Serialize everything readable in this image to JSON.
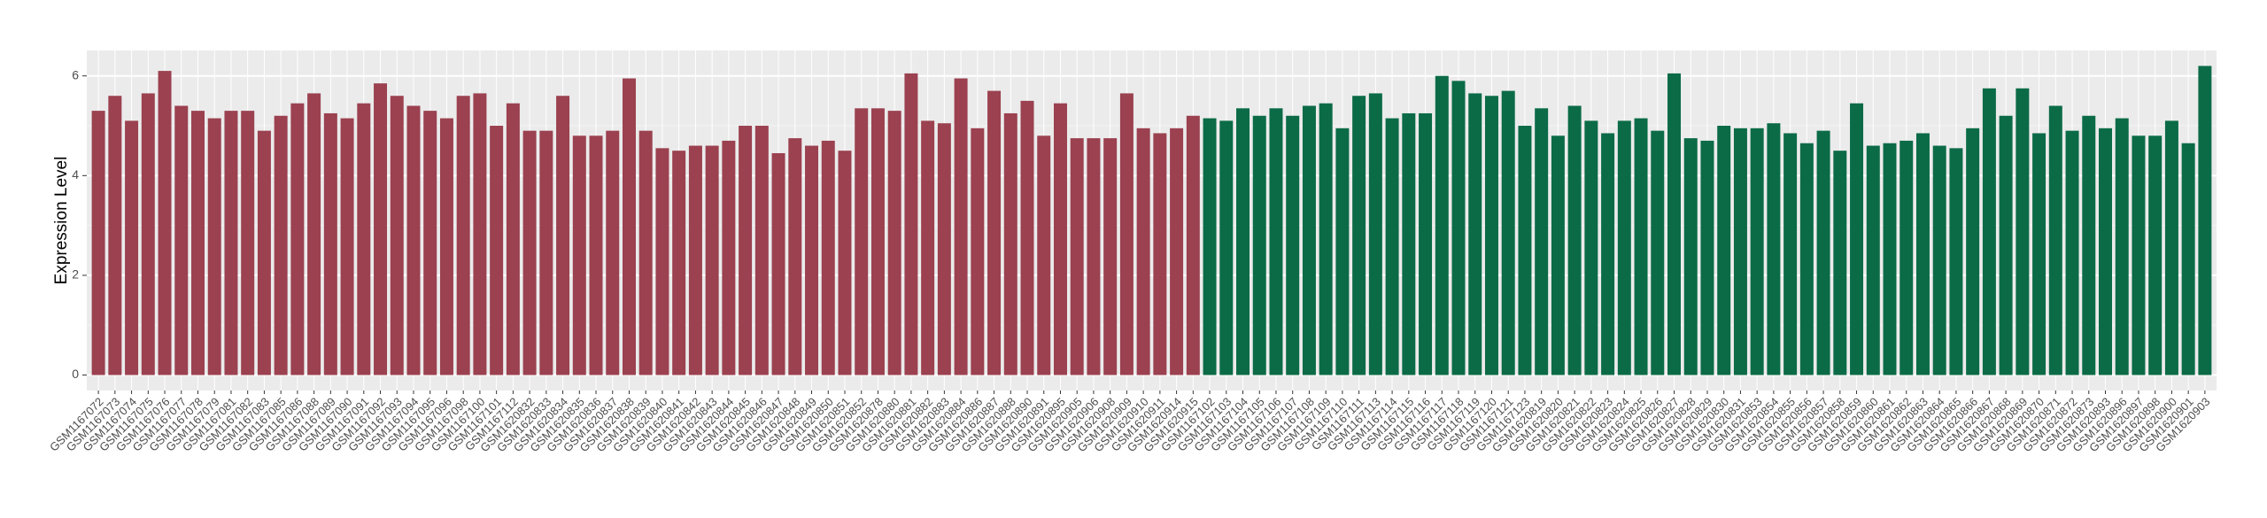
{
  "chart_data": {
    "type": "bar",
    "y_label": "Expression Level",
    "categories": [
      "GSM1167072",
      "GSM1167073",
      "GSM1167074",
      "GSM1167075",
      "GSM1167076",
      "GSM1167077",
      "GSM1167078",
      "GSM1167079",
      "GSM1167081",
      "GSM1167082",
      "GSM1167083",
      "GSM1167085",
      "GSM1167086",
      "GSM1167088",
      "GSM1167089",
      "GSM1167090",
      "GSM1167091",
      "GSM1167092",
      "GSM1167093",
      "GSM1167094",
      "GSM1167095",
      "GSM1167096",
      "GSM1167098",
      "GSM1167100",
      "GSM1167101",
      "GSM1167112",
      "GSM1620832",
      "GSM1620833",
      "GSM1620834",
      "GSM1620835",
      "GSM1620836",
      "GSM1620837",
      "GSM1620838",
      "GSM1620839",
      "GSM1620840",
      "GSM1620841",
      "GSM1620842",
      "GSM1620843",
      "GSM1620844",
      "GSM1620845",
      "GSM1620846",
      "GSM1620847",
      "GSM1620848",
      "GSM1620849",
      "GSM1620850",
      "GSM1620851",
      "GSM1620852",
      "GSM1620878",
      "GSM1620880",
      "GSM1620881",
      "GSM1620882",
      "GSM1620883",
      "GSM1620884",
      "GSM1620886",
      "GSM1620887",
      "GSM1620888",
      "GSM1620890",
      "GSM1620891",
      "GSM1620895",
      "GSM1620905",
      "GSM1620906",
      "GSM1620908",
      "GSM1620909",
      "GSM1620910",
      "GSM1620911",
      "GSM1620914",
      "GSM1620915",
      "GSM1167102",
      "GSM1167103",
      "GSM1167104",
      "GSM1167105",
      "GSM1167106",
      "GSM1167107",
      "GSM1167108",
      "GSM1167109",
      "GSM1167110",
      "GSM1167111",
      "GSM1167113",
      "GSM1167114",
      "GSM1167115",
      "GSM1167116",
      "GSM1167117",
      "GSM1167118",
      "GSM1167119",
      "GSM1167120",
      "GSM1167121",
      "GSM1167123",
      "GSM1620819",
      "GSM1620820",
      "GSM1620821",
      "GSM1620822",
      "GSM1620823",
      "GSM1620824",
      "GSM1620825",
      "GSM1620826",
      "GSM1620827",
      "GSM1620828",
      "GSM1620829",
      "GSM1620830",
      "GSM1620831",
      "GSM1620853",
      "GSM1620854",
      "GSM1620855",
      "GSM1620856",
      "GSM1620857",
      "GSM1620858",
      "GSM1620859",
      "GSM1620860",
      "GSM1620861",
      "GSM1620862",
      "GSM1620863",
      "GSM1620864",
      "GSM1620865",
      "GSM1620866",
      "GSM1620867",
      "GSM1620868",
      "GSM1620869",
      "GSM1620870",
      "GSM1620871",
      "GSM1620872",
      "GSM1620873",
      "GSM1620893",
      "GSM1620896",
      "GSM1620897",
      "GSM1620898",
      "GSM1620900",
      "GSM1620901",
      "GSM1620903"
    ],
    "values": [
      5.3,
      5.6,
      5.1,
      5.65,
      6.1,
      5.4,
      5.3,
      5.15,
      5.3,
      5.3,
      4.9,
      5.2,
      5.45,
      5.65,
      5.25,
      5.15,
      5.45,
      5.85,
      5.6,
      5.4,
      5.3,
      5.15,
      5.6,
      5.65,
      5.0,
      5.45,
      4.9,
      4.9,
      5.6,
      4.8,
      4.8,
      4.9,
      5.95,
      4.9,
      4.55,
      4.5,
      4.6,
      4.6,
      4.7,
      5.0,
      5.0,
      4.45,
      4.75,
      4.6,
      4.7,
      4.5,
      5.35,
      5.35,
      5.3,
      6.05,
      5.1,
      5.05,
      5.95,
      4.95,
      5.7,
      5.25,
      5.5,
      4.8,
      5.45,
      4.75,
      4.75,
      4.75,
      5.65,
      4.95,
      4.85,
      4.95,
      5.2,
      5.15,
      5.1,
      5.35,
      5.2,
      5.35,
      5.2,
      5.4,
      5.45,
      4.95,
      5.6,
      5.65,
      5.15,
      5.25,
      5.25,
      6.0,
      5.9,
      5.65,
      5.6,
      5.7,
      5.0,
      5.35,
      4.8,
      5.4,
      5.1,
      4.85,
      5.1,
      5.15,
      4.9,
      6.05,
      4.75,
      4.7,
      5.0,
      4.95,
      4.95,
      5.05,
      4.85,
      4.65,
      4.9,
      4.5,
      5.45,
      4.6,
      4.65,
      4.7,
      4.85,
      4.6,
      4.55,
      4.95,
      5.75,
      5.2,
      5.75,
      4.85,
      5.4,
      4.9,
      5.2,
      4.95,
      5.15,
      4.8,
      4.8,
      5.1,
      4.65,
      6.2
    ],
    "colors": [
      "#9b4150",
      "#9b4150",
      "#9b4150",
      "#9b4150",
      "#9b4150",
      "#9b4150",
      "#9b4150",
      "#9b4150",
      "#9b4150",
      "#9b4150",
      "#9b4150",
      "#9b4150",
      "#9b4150",
      "#9b4150",
      "#9b4150",
      "#9b4150",
      "#9b4150",
      "#9b4150",
      "#9b4150",
      "#9b4150",
      "#9b4150",
      "#9b4150",
      "#9b4150",
      "#9b4150",
      "#9b4150",
      "#9b4150",
      "#9b4150",
      "#9b4150",
      "#9b4150",
      "#9b4150",
      "#9b4150",
      "#9b4150",
      "#9b4150",
      "#9b4150",
      "#9b4150",
      "#9b4150",
      "#9b4150",
      "#9b4150",
      "#9b4150",
      "#9b4150",
      "#9b4150",
      "#9b4150",
      "#9b4150",
      "#9b4150",
      "#9b4150",
      "#9b4150",
      "#9b4150",
      "#9b4150",
      "#9b4150",
      "#9b4150",
      "#9b4150",
      "#9b4150",
      "#9b4150",
      "#9b4150",
      "#9b4150",
      "#9b4150",
      "#9b4150",
      "#9b4150",
      "#9b4150",
      "#9b4150",
      "#9b4150",
      "#9b4150",
      "#9b4150",
      "#9b4150",
      "#9b4150",
      "#9b4150",
      "#9b4150",
      "#0b6b47",
      "#0b6b47",
      "#0b6b47",
      "#0b6b47",
      "#0b6b47",
      "#0b6b47",
      "#0b6b47",
      "#0b6b47",
      "#0b6b47",
      "#0b6b47",
      "#0b6b47",
      "#0b6b47",
      "#0b6b47",
      "#0b6b47",
      "#0b6b47",
      "#0b6b47",
      "#0b6b47",
      "#0b6b47",
      "#0b6b47",
      "#0b6b47",
      "#0b6b47",
      "#0b6b47",
      "#0b6b47",
      "#0b6b47",
      "#0b6b47",
      "#0b6b47",
      "#0b6b47",
      "#0b6b47",
      "#0b6b47",
      "#0b6b47",
      "#0b6b47",
      "#0b6b47",
      "#0b6b47",
      "#0b6b47",
      "#0b6b47",
      "#0b6b47",
      "#0b6b47",
      "#0b6b47",
      "#0b6b47",
      "#0b6b47",
      "#0b6b47",
      "#0b6b47",
      "#0b6b47",
      "#0b6b47",
      "#0b6b47",
      "#0b6b47",
      "#0b6b47",
      "#0b6b47",
      "#0b6b47",
      "#0b6b47",
      "#0b6b47",
      "#0b6b47",
      "#0b6b47",
      "#0b6b47",
      "#0b6b47",
      "#0b6b47",
      "#0b6b47",
      "#0b6b47",
      "#0b6b47",
      "#0b6b47",
      "#0b6b47"
    ],
    "ylim": [
      -0.31,
      6.51
    ],
    "yticks": [
      0,
      2,
      4,
      6
    ],
    "grid": true
  }
}
